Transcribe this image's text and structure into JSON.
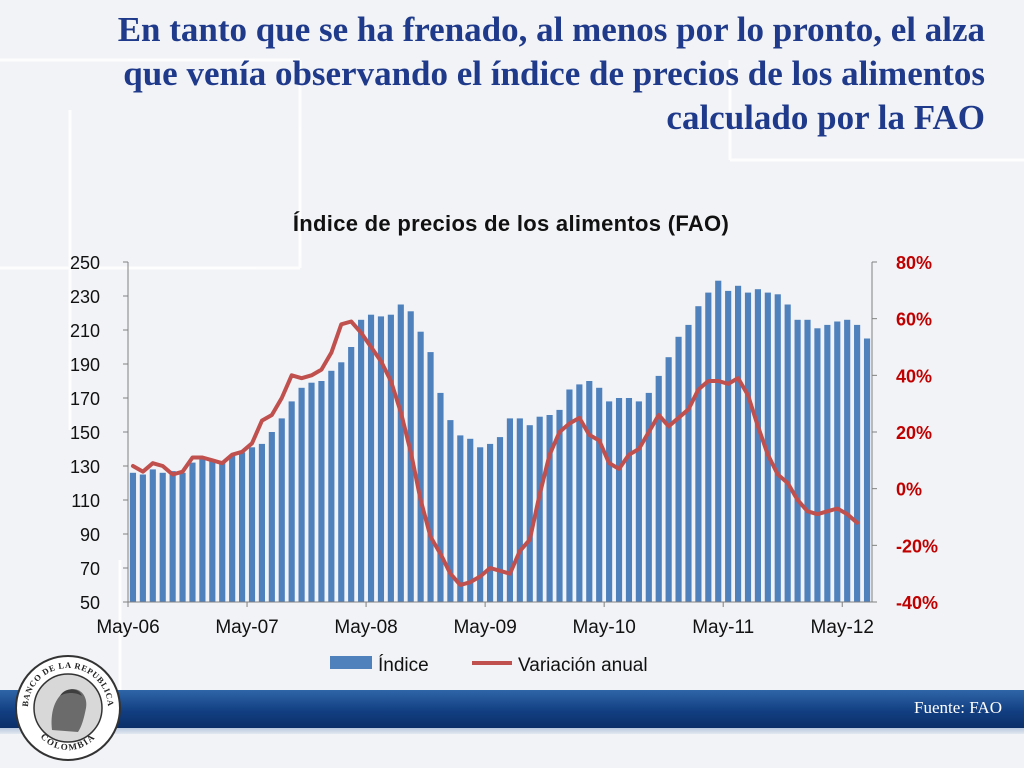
{
  "slide": {
    "title": "En tanto que se ha frenado, al menos por lo pronto, el alza que venía observando el índice de precios de los alimentos calculado por la FAO",
    "source": "Fuente: FAO"
  },
  "logo": {
    "text_top": "BANCO DE LA REPUBLICA",
    "text_bottom": "COLOMBIA"
  },
  "colors": {
    "bars": "#4f81bd",
    "line": "#c0504d",
    "title": "#1f3a8a",
    "right_axis": "#c00000",
    "footer": "#123f82"
  },
  "chart_data": {
    "type": "bar",
    "title": "Índice de precios de los alimentos (FAO)",
    "legend_position": "bottom",
    "grid": false,
    "x_tick_labels": [
      "May-06",
      "May-07",
      "May-08",
      "May-09",
      "May-10",
      "May-11",
      "May-12"
    ],
    "left_axis": {
      "ylim": [
        50,
        250
      ],
      "ticks": [
        "50",
        "70",
        "90",
        "110",
        "130",
        "150",
        "170",
        "190",
        "210",
        "230",
        "250"
      ]
    },
    "right_axis": {
      "ylim": [
        -40,
        80
      ],
      "ticks": [
        "-40%",
        "-20%",
        "0%",
        "20%",
        "40%",
        "60%",
        "80%"
      ],
      "color": "#c00000"
    },
    "series": [
      {
        "name": "Índice",
        "type": "bar",
        "axis": "left",
        "color": "#4f81bd",
        "start": "May-06",
        "values": [
          126,
          125,
          128,
          126,
          127,
          126,
          132,
          135,
          134,
          133,
          136,
          138,
          141,
          143,
          150,
          158,
          168,
          176,
          179,
          180,
          186,
          191,
          200,
          216,
          219,
          218,
          219,
          225,
          221,
          209,
          197,
          173,
          157,
          148,
          146,
          141,
          143,
          147,
          158,
          158,
          154,
          159,
          160,
          163,
          175,
          178,
          180,
          176,
          168,
          170,
          170,
          168,
          173,
          183,
          194,
          206,
          213,
          224,
          232,
          239,
          233,
          236,
          232,
          234,
          232,
          231,
          225,
          216,
          216,
          211,
          213,
          215,
          216,
          213,
          205
        ]
      },
      {
        "name": "Variación anual",
        "type": "line",
        "axis": "right",
        "color": "#c0504d",
        "start": "May-06",
        "values": [
          8,
          6,
          9,
          8,
          5,
          6,
          11,
          11,
          10,
          9,
          12,
          13,
          16,
          24,
          26,
          32,
          40,
          39,
          40,
          42,
          48,
          58,
          59,
          55,
          50,
          45,
          38,
          27,
          13,
          -4,
          -17,
          -23,
          -30,
          -34,
          -33,
          -31,
          -28,
          -29,
          -30,
          -22,
          -18,
          -2,
          12,
          20,
          23,
          25,
          19,
          17,
          9,
          7,
          12,
          14,
          20,
          26,
          22,
          25,
          28,
          35,
          38,
          38,
          37,
          39,
          33,
          22,
          12,
          5,
          2,
          -4,
          -8,
          -9,
          -8,
          -7,
          -9,
          -12
        ]
      }
    ]
  }
}
